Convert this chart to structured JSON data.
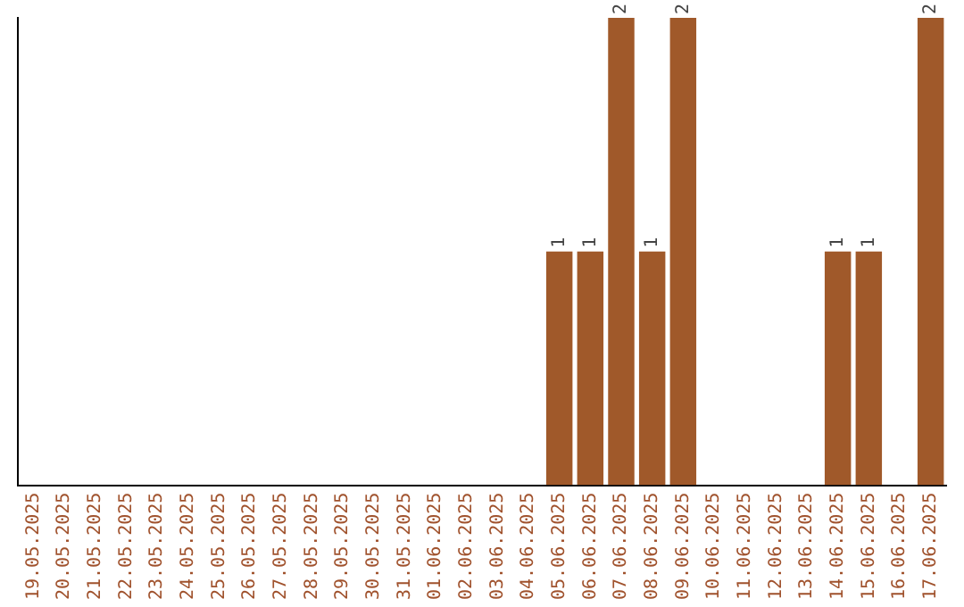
{
  "chart_data": {
    "type": "bar",
    "categories": [
      "19.05.2025",
      "20.05.2025",
      "21.05.2025",
      "22.05.2025",
      "23.05.2025",
      "24.05.2025",
      "25.05.2025",
      "26.05.2025",
      "27.05.2025",
      "28.05.2025",
      "29.05.2025",
      "30.05.2025",
      "31.05.2025",
      "01.06.2025",
      "02.06.2025",
      "03.06.2025",
      "04.06.2025",
      "05.06.2025",
      "06.06.2025",
      "07.06.2025",
      "08.06.2025",
      "09.06.2025",
      "10.06.2025",
      "11.06.2025",
      "12.06.2025",
      "13.06.2025",
      "14.06.2025",
      "15.06.2025",
      "16.06.2025",
      "17.06.2025"
    ],
    "values": [
      null,
      null,
      null,
      null,
      null,
      null,
      null,
      null,
      null,
      null,
      null,
      null,
      null,
      null,
      null,
      null,
      null,
      1,
      1,
      2,
      1,
      2,
      null,
      null,
      null,
      null,
      1,
      1,
      null,
      2
    ],
    "data_labels": true,
    "color": "#a0592a",
    "ylim": [
      0,
      2
    ],
    "tick_labels": "x",
    "grid": false,
    "legend": false
  }
}
